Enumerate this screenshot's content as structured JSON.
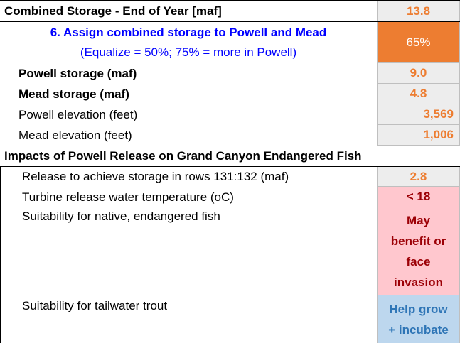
{
  "combined": {
    "label": "Combined Storage - End of Year [maf]",
    "value": "13.8"
  },
  "assign": {
    "line1": "6. Assign combined storage to Powell and Mead",
    "line2": "(Equalize = 50%; 75% = more in Powell)",
    "value": "65%",
    "colors": {
      "label": "#0000ff",
      "cell": "#ed7d31"
    }
  },
  "powell_storage": {
    "label": "Powell storage (maf)",
    "value": "9.0"
  },
  "mead_storage": {
    "label": "Mead storage (maf)",
    "value": "4.8"
  },
  "powell_elev": {
    "label": "Powell elevation (feet)",
    "value": "3,569"
  },
  "mead_elev": {
    "label": "Mead elevation (feet)",
    "value": "1,006"
  },
  "impacts_header": "Impacts of Powell Release on Grand Canyon Endangered Fish",
  "release": {
    "label": "Release to achieve storage in rows 131:132 (maf)",
    "value": "2.8"
  },
  "turbine": {
    "label": "Turbine release water temperature (oC)",
    "value": "< 18"
  },
  "native": {
    "label": "Suitability for native, endangered fish",
    "value_lines": [
      "May",
      "benefit or",
      "face",
      "invasion"
    ]
  },
  "trout": {
    "label": "Suitability for tailwater trout",
    "value_lines": [
      "Help grow",
      "+ incubate"
    ]
  }
}
